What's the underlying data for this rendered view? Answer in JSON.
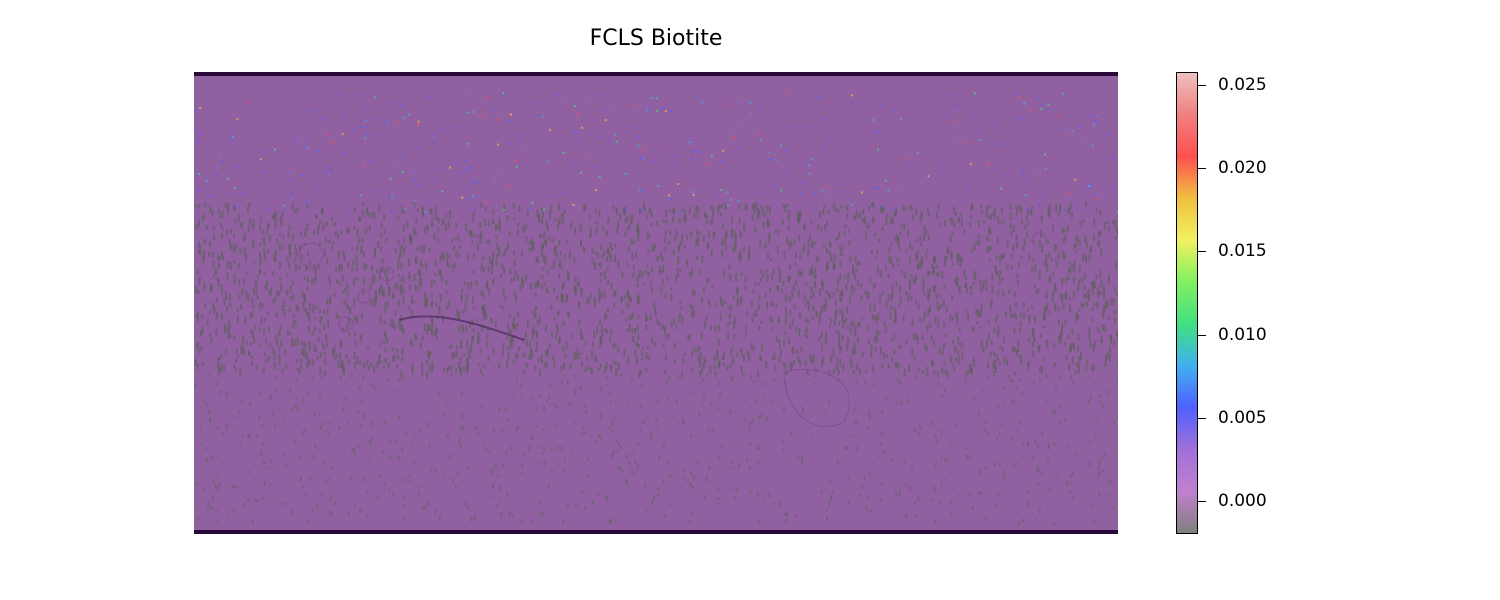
{
  "title": "FCLS Biotite",
  "colorbar": {
    "ticks": [
      {
        "value": 0.025,
        "label": "0.025"
      },
      {
        "value": 0.02,
        "label": "0.020"
      },
      {
        "value": 0.015,
        "label": "0.015"
      },
      {
        "value": 0.01,
        "label": "0.010"
      },
      {
        "value": 0.005,
        "label": "0.005"
      },
      {
        "value": 0.0,
        "label": "0.000"
      }
    ],
    "range": [
      -0.002,
      0.0258
    ],
    "colormap": [
      "#808080",
      "#c080d0",
      "#a070d8",
      "#5060ff",
      "#40b0f0",
      "#40e080",
      "#80f060",
      "#f0f060",
      "#f0c040",
      "#ff5050",
      "#f08080",
      "#f0c0c0"
    ]
  },
  "map": {
    "background_color": "#9060a0",
    "border_color": "#2a0838",
    "band_color": "#606060"
  }
}
